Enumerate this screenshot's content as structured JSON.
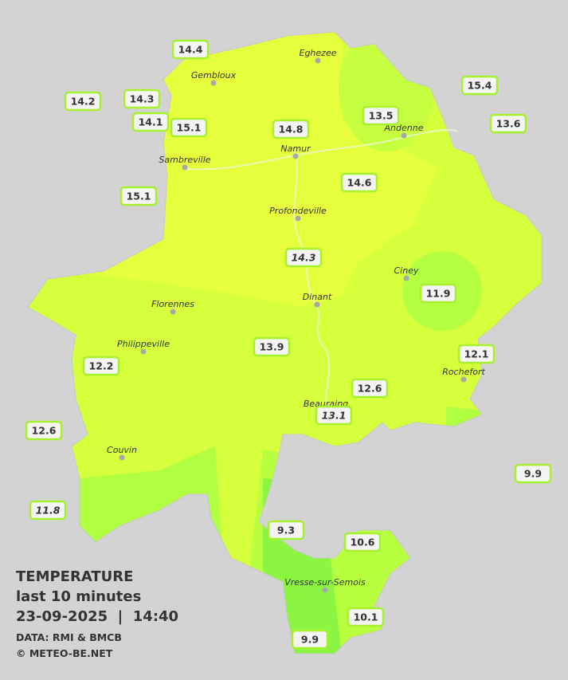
{
  "title": {
    "lines": [
      "TEMPERATURE",
      "last 10 minutes",
      "23-09-2025  |  14:40"
    ],
    "credits": [
      "DATA: RMI & BMCB",
      "© METEO-BE.NET"
    ]
  },
  "stations": [
    {
      "label": "14.4"
    },
    {
      "label": "14.2"
    },
    {
      "label": "14.3"
    },
    {
      "label": "14.1"
    },
    {
      "label": "15.1"
    },
    {
      "label": "14.8"
    },
    {
      "label": "13.5"
    },
    {
      "label": "15.4"
    },
    {
      "label": "13.6"
    },
    {
      "label": "15.1"
    },
    {
      "label": "14.6"
    },
    {
      "label": "14.3",
      "italic": true
    },
    {
      "label": "11.9"
    },
    {
      "label": "13.9"
    },
    {
      "label": "12.1"
    },
    {
      "label": "12.2"
    },
    {
      "label": "12.6"
    },
    {
      "label": "13.1",
      "italic": true
    },
    {
      "label": "12.6"
    },
    {
      "label": "9.9"
    },
    {
      "label": "11.8",
      "italic": true
    },
    {
      "label": "9.3"
    },
    {
      "label": "10.6"
    },
    {
      "label": "10.1"
    },
    {
      "label": "9.9"
    }
  ],
  "cities": [
    {
      "name": "Eghezee"
    },
    {
      "name": "Gembloux"
    },
    {
      "name": "Andenne"
    },
    {
      "name": "Namur"
    },
    {
      "name": "Sambreville"
    },
    {
      "name": "Profondeville"
    },
    {
      "name": "Ciney"
    },
    {
      "name": "Dinant"
    },
    {
      "name": "Florennes"
    },
    {
      "name": "Philippeville"
    },
    {
      "name": "Rochefort"
    },
    {
      "name": "Beauraing"
    },
    {
      "name": "Couvin"
    },
    {
      "name": "Vresse-sur-Semois"
    }
  ]
}
